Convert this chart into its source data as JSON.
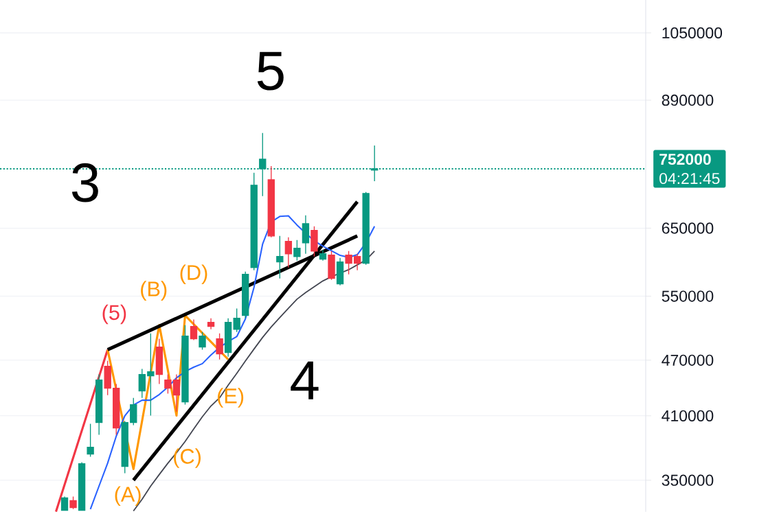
{
  "chart_data": {
    "type": "candlestick",
    "categories": [
      null,
      null,
      null,
      null,
      null,
      null,
      null,
      null,
      null,
      null,
      null,
      null,
      null,
      null,
      null,
      null,
      null,
      null,
      null,
      null,
      null,
      null,
      null,
      null,
      null,
      null,
      null,
      null,
      null,
      null,
      null,
      null,
      null,
      null,
      null,
      null,
      null,
      null,
      null,
      null,
      null,
      null,
      null,
      null,
      null,
      null,
      null,
      null,
      null,
      null,
      null,
      null,
      null,
      null,
      null,
      null,
      null,
      null,
      null,
      null,
      null,
      null,
      null,
      null,
      null,
      null,
      null,
      null,
      null,
      null,
      null,
      null,
      null,
      null,
      null
    ],
    "ohlc": [
      null,
      null,
      null,
      null,
      null,
      null,
      null,
      [
        325000,
        336300,
        325000,
        335200
      ],
      [
        332900,
        336300,
        326000,
        327300
      ],
      [
        325000,
        365800,
        325000,
        364500
      ],
      [
        373300,
        402000,
        370800,
        379600
      ],
      [
        403300,
        453800,
        391300,
        447700
      ],
      [
        463100,
        469300,
        431400,
        438800
      ],
      [
        438800,
        443200,
        391300,
        397900
      ],
      [
        362100,
        404700,
        356100,
        403300
      ],
      [
        403300,
        428500,
        400600,
        421400
      ],
      [
        435800,
        460000,
        428500,
        453800
      ],
      [
        452300,
        502000,
        410200,
        456900
      ],
      [
        485400,
        495400,
        443200,
        453800
      ],
      [
        447700,
        453800,
        432900,
        438800
      ],
      [
        447700,
        453800,
        414300,
        431400
      ],
      [
        424200,
        512300,
        421400,
        498700
      ],
      [
        510600,
        519300,
        493700,
        495400
      ],
      [
        485400,
        503700,
        482200,
        498700
      ],
      [
        515800,
        521000,
        507100,
        510600
      ],
      [
        495400,
        502000,
        470900,
        477300
      ],
      [
        478900,
        521000,
        474100,
        515800
      ],
      [
        507100,
        533500,
        503700,
        521000
      ],
      [
        524600,
        584300,
        521000,
        580300
      ],
      [
        590200,
        744700,
        586200,
        722400
      ],
      [
        752100,
        821000,
        703100,
        770100
      ],
      [
        732200,
        757200,
        635600,
        637700
      ],
      [
        598200,
        637700,
        574500,
        606300
      ],
      [
        629200,
        635600,
        590200,
        610400
      ],
      [
        606300,
        631400,
        600200,
        618700
      ],
      [
        627100,
        670800,
        610400,
        657300
      ],
      [
        646400,
        653000,
        606300,
        614500
      ],
      [
        602300,
        616600,
        600200,
        610400
      ],
      [
        608400,
        614500,
        572600,
        574500
      ],
      [
        566800,
        604300,
        564900,
        598200
      ],
      [
        608400,
        614500,
        580300,
        596200
      ],
      [
        606300,
        610400,
        586200,
        596200
      ],
      [
        596200,
        710300,
        594200,
        707900
      ],
      [
        749700,
        796500,
        729700,
        752000
      ],
      null,
      null,
      null,
      null,
      null,
      null,
      null,
      null,
      null,
      null,
      null,
      null,
      null,
      null,
      null,
      null,
      null,
      null,
      null,
      null,
      null,
      null,
      null,
      null,
      null,
      null,
      null,
      null,
      null,
      null,
      null
    ],
    "colors": [
      null,
      null,
      null,
      null,
      null,
      null,
      null,
      "#089981",
      "#f23645",
      "#089981",
      "#089981",
      "#089981",
      "#f23645",
      "#f23645",
      "#089981",
      "#089981",
      "#089981",
      "#089981",
      "#f23645",
      "#f23645",
      "#f23645",
      "#089981",
      "#f23645",
      "#089981",
      "#f23645",
      "#f23645",
      "#089981",
      "#089981",
      "#089981",
      "#089981",
      "#089981",
      "#f23645",
      "#089981",
      "#f23645",
      "#089981",
      "#089981",
      "#f23645",
      "#089981",
      "#f23645",
      "#089981",
      "#f23645",
      "#f23645",
      "#089981",
      "#089981",
      null,
      null,
      null,
      null,
      null,
      null,
      null,
      null,
      null,
      null,
      null,
      null,
      null,
      null,
      null,
      null,
      null,
      null,
      null,
      null,
      null,
      null,
      null,
      null,
      null,
      null,
      null,
      null,
      null,
      null,
      null
    ],
    "series": [
      {
        "type": "line",
        "color": "#f23645",
        "values": [
          null,
          null,
          null,
          null,
          null,
          null,
          324000,
          null,
          null,
          null,
          null,
          null,
          482200,
          null,
          null,
          null,
          null,
          null,
          null,
          null,
          null,
          null,
          null,
          null,
          null,
          null,
          null,
          null,
          null,
          null,
          null,
          null,
          null,
          null,
          null,
          null,
          null,
          null,
          null,
          null,
          null,
          null,
          null,
          null,
          null,
          null,
          null,
          null,
          null,
          null,
          null,
          null,
          null,
          null,
          null,
          null,
          null,
          null,
          null,
          null,
          null,
          null,
          null,
          null,
          null,
          null,
          null,
          null,
          null,
          null,
          null,
          null,
          null,
          null,
          null
        ]
      },
      {
        "type": "line",
        "color": "#ff9800",
        "values": [
          null,
          null,
          null,
          null,
          null,
          null,
          null,
          null,
          null,
          null,
          null,
          null,
          482200,
          null,
          null,
          359700,
          null,
          null,
          512300,
          null,
          410200,
          524600,
          null,
          null,
          null,
          null,
          470900,
          null,
          null,
          null,
          null,
          null,
          null,
          null,
          null,
          null,
          null,
          null,
          null,
          null,
          null,
          null,
          null,
          null,
          null,
          null,
          null,
          null,
          null,
          null,
          null,
          null,
          null,
          null,
          null,
          null,
          null,
          null,
          null,
          null,
          null,
          null,
          null,
          null,
          null,
          null,
          null,
          null,
          null,
          null,
          null,
          null,
          null,
          null,
          null
        ]
      },
      {
        "type": "line",
        "color": "#000000",
        "values": [
          null,
          null,
          null,
          null,
          null,
          null,
          null,
          null,
          null,
          null,
          null,
          null,
          482200,
          null,
          null,
          null,
          null,
          null,
          null,
          null,
          null,
          null,
          null,
          null,
          null,
          null,
          null,
          null,
          null,
          null,
          null,
          null,
          null,
          null,
          null,
          null,
          null,
          null,
          null,
          null,
          null,
          637700,
          null,
          null,
          null,
          null,
          null,
          null,
          null,
          null,
          null,
          null,
          null,
          null,
          null,
          null,
          null,
          null,
          null,
          null,
          null,
          null,
          null,
          null,
          null,
          null,
          null,
          null,
          null,
          null,
          null,
          null,
          null,
          null,
          null
        ]
      },
      {
        "type": "line",
        "color": "#000000",
        "values": [
          null,
          null,
          null,
          null,
          null,
          null,
          null,
          null,
          null,
          null,
          null,
          null,
          null,
          null,
          null,
          350100,
          null,
          null,
          null,
          null,
          null,
          null,
          null,
          null,
          null,
          null,
          null,
          null,
          null,
          null,
          null,
          null,
          null,
          null,
          null,
          null,
          null,
          null,
          null,
          null,
          null,
          693700,
          null,
          null,
          null,
          null,
          null,
          null,
          null,
          null,
          null,
          null,
          null,
          null,
          null,
          null,
          null,
          null,
          null,
          null,
          null,
          null,
          null,
          null,
          null,
          null,
          null,
          null,
          null,
          null,
          null,
          null,
          null,
          null,
          null
        ]
      },
      {
        "type": "line",
        "color": "#2962ff",
        "values": [
          null,
          null,
          null,
          null,
          null,
          null,
          null,
          null,
          null,
          null,
          326000,
          345000,
          365000,
          390000,
          410000,
          421000,
          426000,
          426000,
          432000,
          440000,
          450000,
          457000,
          462000,
          466000,
          476000,
          485000,
          492000,
          498000,
          520000,
          562000,
          625000,
          660000,
          669000,
          670000,
          655000,
          642000,
          630000,
          622000,
          615000,
          608000,
          605000,
          609000,
          627000,
          653000,
          null,
          null,
          null,
          null,
          null,
          null,
          null,
          null,
          null,
          null,
          null,
          null,
          null,
          null,
          null,
          null,
          null,
          null,
          null,
          null,
          null,
          null,
          null,
          null,
          null,
          null,
          null,
          null,
          null,
          null,
          null
        ]
      },
      {
        "type": "line",
        "color": "#434651",
        "values": [
          null,
          null,
          null,
          null,
          null,
          null,
          null,
          null,
          null,
          null,
          null,
          null,
          null,
          null,
          null,
          324500,
          334000,
          345000,
          355000,
          365000,
          374500,
          385000,
          397000,
          409000,
          420000,
          428500,
          442000,
          455000,
          469000,
          483000,
          497000,
          510000,
          522000,
          534000,
          546000,
          555000,
          563000,
          571000,
          577000,
          582000,
          587000,
          594000,
          601000,
          614500,
          null,
          null,
          null,
          null,
          null,
          null,
          null,
          null,
          null,
          null,
          null,
          null,
          null,
          null,
          null,
          null,
          null,
          null,
          null,
          null,
          null,
          null,
          null,
          null,
          null,
          null,
          null,
          null,
          null,
          null,
          null
        ]
      }
    ],
    "ylim": [
      323800,
      1138500
    ],
    "yticks": [
      350000,
      410000,
      470000,
      550000,
      650000,
      890000,
      1050000
    ],
    "log": true,
    "grid": "y",
    "tick_labels": "y",
    "marker": "none",
    "ref_lines": [
      {
        "axis": "y",
        "value": 752000,
        "label": "752000",
        "color": "#089981",
        "line_style": "dotted"
      }
    ],
    "annotations": [
      "3",
      "5",
      "4",
      "(5)",
      "(B)",
      "(D)",
      "(C)",
      "(E)",
      "(A)",
      "04:21:45"
    ]
  }
}
